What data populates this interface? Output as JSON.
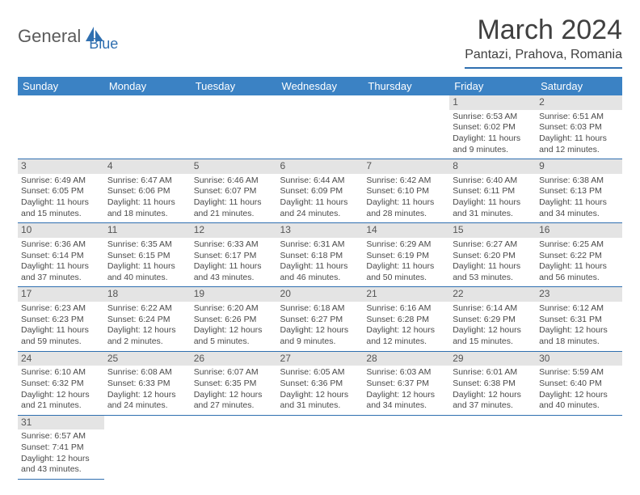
{
  "logo": {
    "part1": "General",
    "part2": "Blue"
  },
  "title": "March 2024",
  "location": "Pantazi, Prahova, Romania",
  "colors": {
    "header_bg": "#3b82c4",
    "header_text": "#ffffff",
    "rule": "#2f6fb0",
    "daybar": "#e4e4e4",
    "body_text": "#4a4a4a",
    "title_text": "#404040"
  },
  "typography": {
    "title_fontsize": 34,
    "location_fontsize": 16,
    "weekday_fontsize": 13,
    "cell_fontsize": 10.5,
    "daynum_fontsize": 12
  },
  "weekdays": [
    "Sunday",
    "Monday",
    "Tuesday",
    "Wednesday",
    "Thursday",
    "Friday",
    "Saturday"
  ],
  "weeks": [
    [
      null,
      null,
      null,
      null,
      null,
      {
        "n": "1",
        "sr": "6:53 AM",
        "ss": "6:02 PM",
        "dl": "11 hours and 9 minutes."
      },
      {
        "n": "2",
        "sr": "6:51 AM",
        "ss": "6:03 PM",
        "dl": "11 hours and 12 minutes."
      }
    ],
    [
      {
        "n": "3",
        "sr": "6:49 AM",
        "ss": "6:05 PM",
        "dl": "11 hours and 15 minutes."
      },
      {
        "n": "4",
        "sr": "6:47 AM",
        "ss": "6:06 PM",
        "dl": "11 hours and 18 minutes."
      },
      {
        "n": "5",
        "sr": "6:46 AM",
        "ss": "6:07 PM",
        "dl": "11 hours and 21 minutes."
      },
      {
        "n": "6",
        "sr": "6:44 AM",
        "ss": "6:09 PM",
        "dl": "11 hours and 24 minutes."
      },
      {
        "n": "7",
        "sr": "6:42 AM",
        "ss": "6:10 PM",
        "dl": "11 hours and 28 minutes."
      },
      {
        "n": "8",
        "sr": "6:40 AM",
        "ss": "6:11 PM",
        "dl": "11 hours and 31 minutes."
      },
      {
        "n": "9",
        "sr": "6:38 AM",
        "ss": "6:13 PM",
        "dl": "11 hours and 34 minutes."
      }
    ],
    [
      {
        "n": "10",
        "sr": "6:36 AM",
        "ss": "6:14 PM",
        "dl": "11 hours and 37 minutes."
      },
      {
        "n": "11",
        "sr": "6:35 AM",
        "ss": "6:15 PM",
        "dl": "11 hours and 40 minutes."
      },
      {
        "n": "12",
        "sr": "6:33 AM",
        "ss": "6:17 PM",
        "dl": "11 hours and 43 minutes."
      },
      {
        "n": "13",
        "sr": "6:31 AM",
        "ss": "6:18 PM",
        "dl": "11 hours and 46 minutes."
      },
      {
        "n": "14",
        "sr": "6:29 AM",
        "ss": "6:19 PM",
        "dl": "11 hours and 50 minutes."
      },
      {
        "n": "15",
        "sr": "6:27 AM",
        "ss": "6:20 PM",
        "dl": "11 hours and 53 minutes."
      },
      {
        "n": "16",
        "sr": "6:25 AM",
        "ss": "6:22 PM",
        "dl": "11 hours and 56 minutes."
      }
    ],
    [
      {
        "n": "17",
        "sr": "6:23 AM",
        "ss": "6:23 PM",
        "dl": "11 hours and 59 minutes."
      },
      {
        "n": "18",
        "sr": "6:22 AM",
        "ss": "6:24 PM",
        "dl": "12 hours and 2 minutes."
      },
      {
        "n": "19",
        "sr": "6:20 AM",
        "ss": "6:26 PM",
        "dl": "12 hours and 5 minutes."
      },
      {
        "n": "20",
        "sr": "6:18 AM",
        "ss": "6:27 PM",
        "dl": "12 hours and 9 minutes."
      },
      {
        "n": "21",
        "sr": "6:16 AM",
        "ss": "6:28 PM",
        "dl": "12 hours and 12 minutes."
      },
      {
        "n": "22",
        "sr": "6:14 AM",
        "ss": "6:29 PM",
        "dl": "12 hours and 15 minutes."
      },
      {
        "n": "23",
        "sr": "6:12 AM",
        "ss": "6:31 PM",
        "dl": "12 hours and 18 minutes."
      }
    ],
    [
      {
        "n": "24",
        "sr": "6:10 AM",
        "ss": "6:32 PM",
        "dl": "12 hours and 21 minutes."
      },
      {
        "n": "25",
        "sr": "6:08 AM",
        "ss": "6:33 PM",
        "dl": "12 hours and 24 minutes."
      },
      {
        "n": "26",
        "sr": "6:07 AM",
        "ss": "6:35 PM",
        "dl": "12 hours and 27 minutes."
      },
      {
        "n": "27",
        "sr": "6:05 AM",
        "ss": "6:36 PM",
        "dl": "12 hours and 31 minutes."
      },
      {
        "n": "28",
        "sr": "6:03 AM",
        "ss": "6:37 PM",
        "dl": "12 hours and 34 minutes."
      },
      {
        "n": "29",
        "sr": "6:01 AM",
        "ss": "6:38 PM",
        "dl": "12 hours and 37 minutes."
      },
      {
        "n": "30",
        "sr": "5:59 AM",
        "ss": "6:40 PM",
        "dl": "12 hours and 40 minutes."
      }
    ],
    [
      {
        "n": "31",
        "sr": "6:57 AM",
        "ss": "7:41 PM",
        "dl": "12 hours and 43 minutes."
      },
      null,
      null,
      null,
      null,
      null,
      null
    ]
  ],
  "labels": {
    "sunrise": "Sunrise: ",
    "sunset": "Sunset: ",
    "daylight": "Daylight: "
  }
}
